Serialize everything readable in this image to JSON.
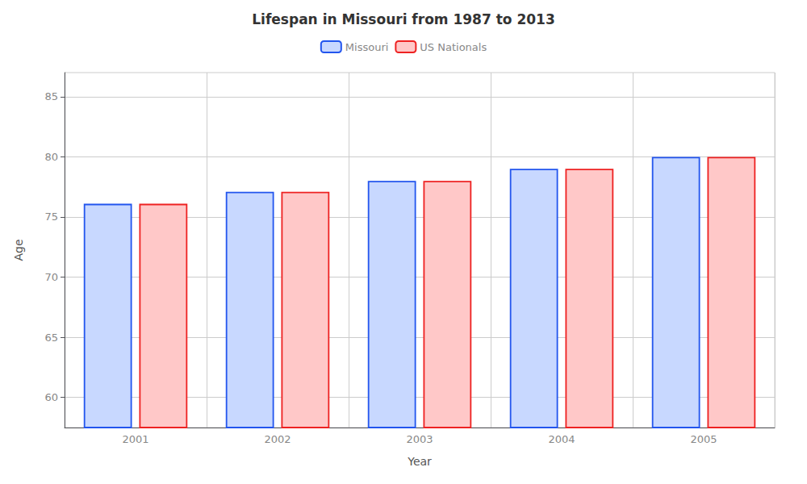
{
  "chart_data": {
    "type": "bar",
    "title": "Lifespan in Missouri from 1987 to 2013",
    "x_label": "Year",
    "y_label": "Age",
    "categories": [
      "2001",
      "2002",
      "2003",
      "2004",
      "2005"
    ],
    "series": [
      {
        "name": "Missouri",
        "color": "#c8d8ff",
        "values": [
          76.1,
          77.1,
          78.0,
          79.0,
          80.0
        ]
      },
      {
        "name": "US Nationals",
        "color": "#ffc8c8",
        "values": [
          76.1,
          77.1,
          78.0,
          79.0,
          80.0
        ]
      }
    ],
    "ylim": [
      57.5,
      87
    ],
    "yticks": [
      60,
      65,
      70,
      75,
      80,
      85
    ],
    "grid": true,
    "legend": "top"
  }
}
